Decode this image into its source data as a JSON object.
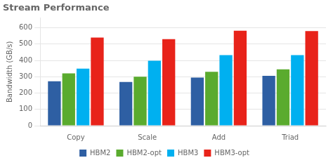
{
  "chart_data": {
    "type": "bar",
    "title": "Stream Performance",
    "ylabel": "Bandwidth (GB/s)",
    "categories": [
      "Copy",
      "Scale",
      "Add",
      "Triad"
    ],
    "series": [
      {
        "name": "HBM2",
        "color": "#2e5fa3",
        "values": [
          272,
          268,
          295,
          305
        ]
      },
      {
        "name": "HBM2-opt",
        "color": "#5aab2e",
        "values": [
          320,
          300,
          330,
          345
        ]
      },
      {
        "name": "HBM3",
        "color": "#00b0f0",
        "values": [
          350,
          398,
          432,
          432
        ]
      },
      {
        "name": "HBM3-opt",
        "color": "#e8231a",
        "values": [
          540,
          530,
          582,
          580
        ]
      }
    ],
    "ylim": [
      0,
      660
    ],
    "yticks": [
      0,
      100,
      200,
      300,
      400,
      500,
      600
    ],
    "grid": true,
    "legend": "bottom"
  }
}
